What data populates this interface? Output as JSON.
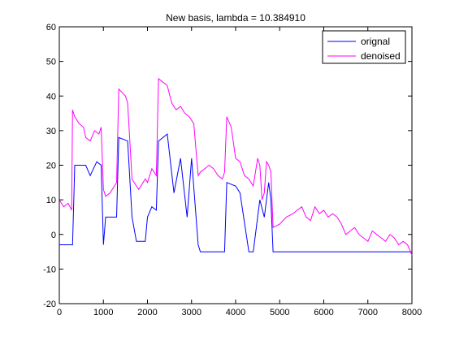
{
  "chart_data": {
    "type": "line",
    "title": "New basis, lambda = 10.384910",
    "xlabel": "",
    "ylabel": "",
    "xlim": [
      0,
      8000
    ],
    "ylim": [
      -20,
      60
    ],
    "xticks": [
      0,
      1000,
      2000,
      3000,
      4000,
      5000,
      6000,
      7000,
      8000
    ],
    "yticks": [
      -20,
      -10,
      0,
      10,
      20,
      30,
      40,
      50,
      60
    ],
    "grid": false,
    "legend_position": "top-right",
    "series": [
      {
        "name": "orignal",
        "color": "#0000ff",
        "x": [
          0,
          300,
          350,
          600,
          700,
          850,
          950,
          1000,
          1050,
          1300,
          1350,
          1550,
          1650,
          1750,
          1950,
          2000,
          2100,
          2200,
          2250,
          2450,
          2600,
          2750,
          2900,
          3000,
          3150,
          3200,
          3250,
          3600,
          3750,
          3800,
          4000,
          4100,
          4300,
          4400,
          4550,
          4650,
          4750,
          4800,
          4850,
          5000,
          5500,
          6000,
          6500,
          7000,
          7500,
          7800,
          8000
        ],
        "y": [
          -3,
          -3,
          20,
          20,
          17,
          21,
          20,
          -3,
          5,
          5,
          28,
          27,
          5,
          -2,
          -2,
          5,
          8,
          7,
          27,
          29,
          12,
          22,
          5,
          22,
          -3,
          -5,
          -5,
          -5,
          -5,
          15,
          14,
          12,
          -5,
          -5,
          10,
          5,
          15,
          10,
          -5,
          -5,
          -5,
          -5,
          -5,
          -5,
          -5,
          -5,
          -5
        ]
      },
      {
        "name": "denoised",
        "color": "#ff00ff",
        "x": [
          0,
          50,
          100,
          200,
          280,
          300,
          350,
          450,
          550,
          600,
          700,
          800,
          900,
          950,
          1000,
          1050,
          1150,
          1250,
          1300,
          1350,
          1500,
          1550,
          1650,
          1750,
          1800,
          1950,
          2000,
          2100,
          2200,
          2250,
          2350,
          2450,
          2550,
          2650,
          2750,
          2850,
          2950,
          3050,
          3150,
          3200,
          3300,
          3400,
          3500,
          3600,
          3700,
          3750,
          3800,
          3900,
          4000,
          4100,
          4200,
          4300,
          4400,
          4500,
          4550,
          4600,
          4650,
          4700,
          4750,
          4800,
          4850,
          5000,
          5150,
          5300,
          5400,
          5500,
          5600,
          5700,
          5800,
          5900,
          6000,
          6100,
          6200,
          6300,
          6400,
          6500,
          6600,
          6700,
          6800,
          6900,
          7000,
          7100,
          7200,
          7300,
          7400,
          7500,
          7600,
          7700,
          7800,
          7900,
          8000
        ],
        "y": [
          10,
          9,
          8,
          9,
          7,
          36,
          34,
          32,
          31,
          28,
          27,
          30,
          29,
          31,
          13,
          11,
          12,
          14,
          15,
          42,
          40,
          38,
          16,
          14,
          13,
          16,
          15,
          19,
          17,
          45,
          44,
          43,
          38,
          36,
          37,
          35,
          34,
          32,
          17,
          18,
          19,
          20,
          19,
          17,
          16,
          18,
          34,
          31,
          22,
          21,
          17,
          16,
          14,
          22,
          20,
          10,
          12,
          21,
          20,
          18,
          2,
          3,
          5,
          6,
          7,
          8,
          5,
          4,
          8,
          6,
          7,
          5,
          6,
          5,
          3,
          0,
          1,
          2,
          0,
          -1,
          -2,
          1,
          0,
          -1,
          -2,
          0,
          -1,
          -3,
          -2,
          -3,
          -6
        ]
      }
    ]
  }
}
